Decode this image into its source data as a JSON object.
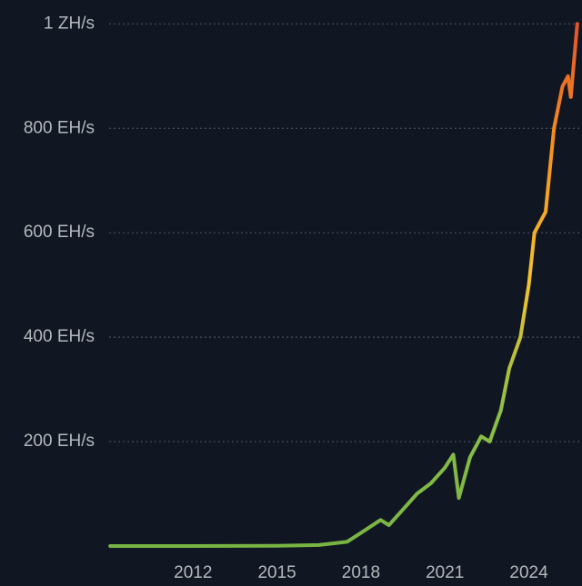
{
  "chart_data": {
    "type": "line",
    "x": [
      2009.04,
      2012,
      2015,
      2016.5,
      2017.5,
      2018,
      2018.7,
      2019,
      2019.5,
      2020,
      2020.5,
      2021,
      2021.3,
      2021.5,
      2021.9,
      2022.3,
      2022.6,
      2023,
      2023.3,
      2023.7,
      2024,
      2024.2,
      2024.4,
      2024.6,
      2024.9,
      2025.2,
      2025.4,
      2025.5,
      2025.73
    ],
    "series": [
      {
        "values": [
          0,
          0,
          0.4,
          2,
          8,
          25,
          50,
          40,
          70,
          100,
          120,
          150,
          175,
          92,
          170,
          210,
          200,
          260,
          340,
          400,
          500,
          600,
          620,
          640,
          800,
          880,
          900,
          860,
          1000
        ]
      }
    ],
    "colors": [
      "#78b444",
      "#8cbf45",
      "#f2c230",
      "#f7941d",
      "#e4522a"
    ],
    "xlim": [
      2009,
      2025.9
    ],
    "xticks": [
      2012,
      2015,
      2018,
      2021,
      2024
    ],
    "ylim": [
      0,
      1004
    ],
    "yticks": [
      {
        "value": 200,
        "label": "200 EH/s"
      },
      {
        "value": 400,
        "label": "400 EH/s"
      },
      {
        "value": 600,
        "label": "600 EH/s"
      },
      {
        "value": 800,
        "label": "800 EH/s"
      },
      {
        "value": 1000,
        "label": "1 ZH/s"
      }
    ],
    "grid": true
  }
}
